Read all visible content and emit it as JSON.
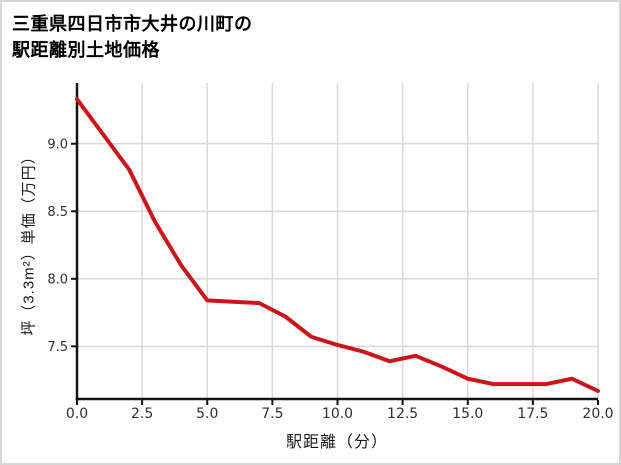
{
  "card": {
    "background": "#ffffff",
    "border_color": "#d6d6d6"
  },
  "title": {
    "line1": "三重県四日市市大井の川町の",
    "line2": "駅距離別土地価格"
  },
  "chart_data": {
    "type": "line",
    "title": "三重県四日市市大井の川町の駅距離別土地価格",
    "xlabel": "駅距離（分）",
    "ylabel": "坪（3.3m²）単価（万円）",
    "x": [
      0,
      1,
      2,
      3,
      4,
      5,
      6,
      7,
      8,
      9,
      10,
      11,
      12,
      13,
      14,
      15,
      16,
      17,
      18,
      19,
      20
    ],
    "values": [
      9.33,
      9.07,
      8.81,
      8.42,
      8.1,
      7.84,
      7.83,
      7.82,
      7.72,
      7.57,
      7.51,
      7.46,
      7.39,
      7.43,
      7.35,
      7.26,
      7.22,
      7.22,
      7.22,
      7.26,
      7.17
    ],
    "xlim": [
      0,
      20
    ],
    "ylim": [
      7.11,
      9.45
    ],
    "x_ticks": [
      0,
      2.5,
      5,
      7.5,
      10,
      12.5,
      15,
      17.5,
      20
    ],
    "x_tick_labels": [
      "0.0",
      "2.5",
      "5.0",
      "7.5",
      "10.0",
      "12.5",
      "15.0",
      "17.5",
      "20.0"
    ],
    "y_ticks": [
      7.5,
      8.0,
      8.5,
      9.0
    ],
    "y_tick_labels": [
      "7.5",
      "8.0",
      "8.5",
      "9.0"
    ],
    "grid": true,
    "legend": "none",
    "line_color": "#c9161d",
    "grid_color": "#dadada",
    "axis_color": "#141414",
    "tick_text_color": "#303030"
  }
}
